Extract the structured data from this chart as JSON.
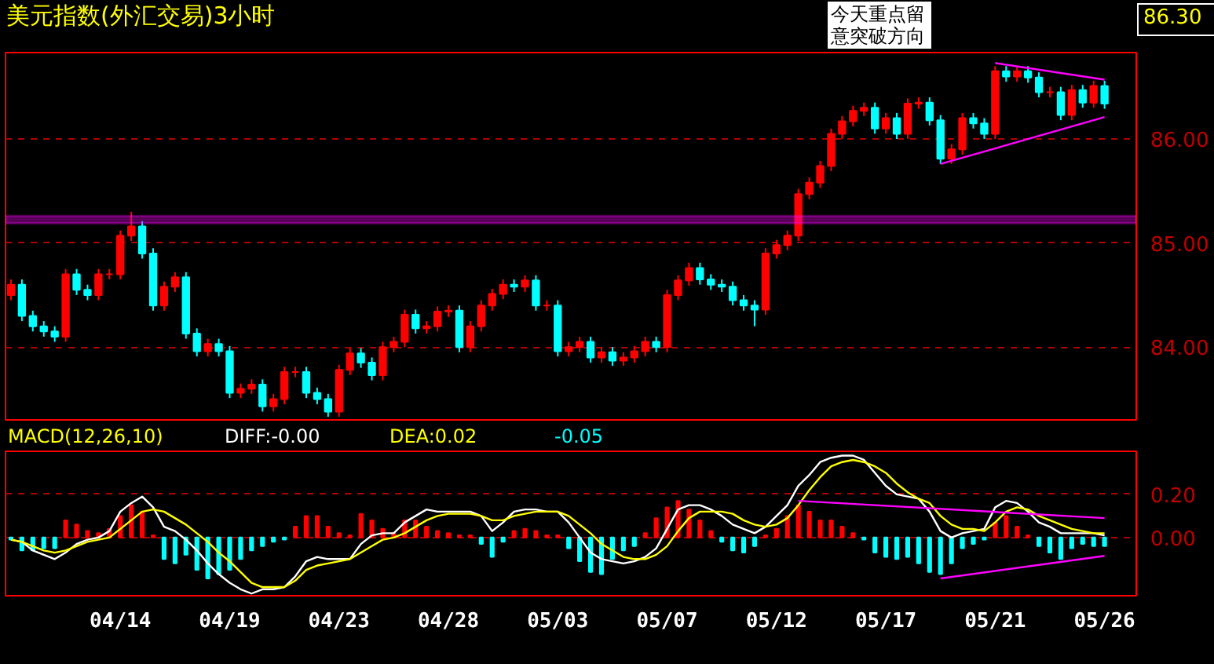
{
  "chart_data": [
    {
      "type": "candlestick",
      "title": "美元指数(外汇交易)3小时",
      "categories": [
        null,
        null,
        null,
        null,
        null,
        null,
        null,
        null,
        null,
        null,
        null,
        null,
        null,
        null,
        null,
        null,
        null,
        null,
        null,
        null,
        null,
        null,
        null,
        null,
        null,
        null,
        null,
        null,
        null,
        null,
        null,
        null,
        null,
        null,
        null,
        null,
        null,
        null,
        null,
        null,
        null,
        null,
        null,
        null,
        null,
        null,
        null,
        null,
        null,
        null,
        null,
        null,
        null,
        null,
        null,
        null,
        null,
        null,
        null,
        null,
        null,
        null,
        null,
        null,
        null,
        null,
        null,
        null,
        null,
        null,
        null,
        null,
        null,
        null,
        null,
        null,
        null,
        null,
        null,
        null,
        null,
        null,
        null,
        null,
        null,
        null,
        null,
        null,
        null,
        null,
        null,
        null,
        null,
        null,
        null,
        null,
        null,
        null,
        null,
        null,
        null
      ],
      "ohlc": [
        [
          84.5,
          84.65,
          84.45,
          84.6
        ],
        [
          84.6,
          84.65,
          84.25,
          84.3
        ],
        [
          84.3,
          84.35,
          84.15,
          84.2
        ],
        [
          84.2,
          84.25,
          84.1,
          84.15
        ],
        [
          84.15,
          84.2,
          84.05,
          84.1
        ],
        [
          84.1,
          84.75,
          84.05,
          84.7
        ],
        [
          84.7,
          84.75,
          84.5,
          84.55
        ],
        [
          84.55,
          84.6,
          84.45,
          84.5
        ],
        [
          84.5,
          84.75,
          84.45,
          84.7
        ],
        [
          84.7,
          84.75,
          84.65,
          84.7
        ],
        [
          84.7,
          85.12,
          84.65,
          85.07
        ],
        [
          85.07,
          85.3,
          85.02,
          85.16
        ],
        [
          85.16,
          85.21,
          84.85,
          84.9
        ],
        [
          84.9,
          84.95,
          84.35,
          84.4
        ],
        [
          84.4,
          84.63,
          84.35,
          84.58
        ],
        [
          84.58,
          84.72,
          84.53,
          84.67
        ],
        [
          84.67,
          84.72,
          84.08,
          84.13
        ],
        [
          84.13,
          84.18,
          83.91,
          83.96
        ],
        [
          83.96,
          84.08,
          83.91,
          84.03
        ],
        [
          84.03,
          84.08,
          83.91,
          83.96
        ],
        [
          83.96,
          84.01,
          83.51,
          83.56
        ],
        [
          83.56,
          83.65,
          83.51,
          83.6
        ],
        [
          83.6,
          83.69,
          83.55,
          83.64
        ],
        [
          83.64,
          83.69,
          83.38,
          83.43
        ],
        [
          83.43,
          83.55,
          83.38,
          83.5
        ],
        [
          83.5,
          83.81,
          83.45,
          83.76
        ],
        [
          83.76,
          83.81,
          83.71,
          83.76
        ],
        [
          83.76,
          83.81,
          83.51,
          83.56
        ],
        [
          83.56,
          83.61,
          83.45,
          83.5
        ],
        [
          83.5,
          83.55,
          83.33,
          83.38
        ],
        [
          83.38,
          83.83,
          83.33,
          83.78
        ],
        [
          83.78,
          83.99,
          83.73,
          83.94
        ],
        [
          83.94,
          83.99,
          83.8,
          83.85
        ],
        [
          83.85,
          83.9,
          83.68,
          83.73
        ],
        [
          83.73,
          84.05,
          83.68,
          84.0
        ],
        [
          84.0,
          84.1,
          83.95,
          84.05
        ],
        [
          84.05,
          84.36,
          84.0,
          84.31
        ],
        [
          84.31,
          84.36,
          84.13,
          84.18
        ],
        [
          84.18,
          84.25,
          84.13,
          84.2
        ],
        [
          84.2,
          84.39,
          84.15,
          84.34
        ],
        [
          84.34,
          84.4,
          84.29,
          84.35
        ],
        [
          84.35,
          84.4,
          83.95,
          84.0
        ],
        [
          84.0,
          84.25,
          83.95,
          84.2
        ],
        [
          84.2,
          84.45,
          84.15,
          84.4
        ],
        [
          84.4,
          84.56,
          84.35,
          84.51
        ],
        [
          84.51,
          84.65,
          84.46,
          84.6
        ],
        [
          84.6,
          84.65,
          84.53,
          84.58
        ],
        [
          84.58,
          84.69,
          84.53,
          84.64
        ],
        [
          84.64,
          84.69,
          84.35,
          84.4
        ],
        [
          84.4,
          84.45,
          84.35,
          84.4
        ],
        [
          84.4,
          84.45,
          83.91,
          83.96
        ],
        [
          83.96,
          84.05,
          83.91,
          84.0
        ],
        [
          84.0,
          84.1,
          83.95,
          84.05
        ],
        [
          84.05,
          84.1,
          83.85,
          83.9
        ],
        [
          83.9,
          84.0,
          83.85,
          83.95
        ],
        [
          83.95,
          84.0,
          83.82,
          83.87
        ],
        [
          83.87,
          83.95,
          83.82,
          83.9
        ],
        [
          83.9,
          84.01,
          83.85,
          83.96
        ],
        [
          83.96,
          84.1,
          83.91,
          84.05
        ],
        [
          84.05,
          84.1,
          83.95,
          84.0
        ],
        [
          84.0,
          84.55,
          83.95,
          84.5
        ],
        [
          84.5,
          84.69,
          84.45,
          84.64
        ],
        [
          84.64,
          84.81,
          84.59,
          84.76
        ],
        [
          84.76,
          84.81,
          84.6,
          84.65
        ],
        [
          84.65,
          84.7,
          84.55,
          84.6
        ],
        [
          84.6,
          84.65,
          84.53,
          84.58
        ],
        [
          84.58,
          84.63,
          84.4,
          84.45
        ],
        [
          84.45,
          84.5,
          84.35,
          84.4
        ],
        [
          84.4,
          84.45,
          84.2,
          84.36
        ],
        [
          84.36,
          84.95,
          84.31,
          84.9
        ],
        [
          84.9,
          85.03,
          84.85,
          84.98
        ],
        [
          84.98,
          85.12,
          84.93,
          85.07
        ],
        [
          85.07,
          85.52,
          85.02,
          85.47
        ],
        [
          85.47,
          85.63,
          85.42,
          85.58
        ],
        [
          85.58,
          85.79,
          85.53,
          85.74
        ],
        [
          85.74,
          86.1,
          85.69,
          86.05
        ],
        [
          86.05,
          86.22,
          86.0,
          86.17
        ],
        [
          86.17,
          86.32,
          86.12,
          86.27
        ],
        [
          86.27,
          86.35,
          86.22,
          86.3
        ],
        [
          86.3,
          86.35,
          86.05,
          86.1
        ],
        [
          86.1,
          86.25,
          86.05,
          86.2
        ],
        [
          86.2,
          86.25,
          86.0,
          86.05
        ],
        [
          86.05,
          86.39,
          86.0,
          86.34
        ],
        [
          86.34,
          86.4,
          86.29,
          86.35
        ],
        [
          86.35,
          86.4,
          86.13,
          86.18
        ],
        [
          86.18,
          86.23,
          85.76,
          85.81
        ],
        [
          85.81,
          85.95,
          85.76,
          85.9
        ],
        [
          85.9,
          86.25,
          85.85,
          86.2
        ],
        [
          86.2,
          86.25,
          86.1,
          86.15
        ],
        [
          86.15,
          86.2,
          86.0,
          86.05
        ],
        [
          86.05,
          86.7,
          86.0,
          86.65
        ],
        [
          86.65,
          86.7,
          86.55,
          86.6
        ],
        [
          86.6,
          86.7,
          86.55,
          86.65
        ],
        [
          86.65,
          86.7,
          86.54,
          86.59
        ],
        [
          86.59,
          86.64,
          86.4,
          86.45
        ],
        [
          86.45,
          86.5,
          86.4,
          86.45
        ],
        [
          86.45,
          86.5,
          86.18,
          86.23
        ],
        [
          86.23,
          86.52,
          86.18,
          86.47
        ],
        [
          86.47,
          86.52,
          86.3,
          86.35
        ],
        [
          86.35,
          86.56,
          86.3,
          86.51
        ],
        [
          86.51,
          86.56,
          86.29,
          86.34
        ]
      ],
      "series": [
        {
          "type": "line",
          "color": "#ff00ff",
          "values": [
            null,
            null,
            null,
            null,
            null,
            null,
            null,
            null,
            null,
            null,
            null,
            null,
            null,
            null,
            null,
            null,
            null,
            null,
            null,
            null,
            null,
            null,
            null,
            null,
            null,
            null,
            null,
            null,
            null,
            null,
            null,
            null,
            null,
            null,
            null,
            null,
            null,
            null,
            null,
            null,
            null,
            null,
            null,
            null,
            null,
            null,
            null,
            null,
            null,
            null,
            null,
            null,
            null,
            null,
            null,
            null,
            null,
            null,
            null,
            null,
            null,
            null,
            null,
            null,
            null,
            null,
            null,
            null,
            null,
            null,
            null,
            null,
            null,
            null,
            null,
            null,
            null,
            null,
            null,
            null,
            null,
            null,
            null,
            null,
            null,
            null,
            null,
            null,
            null,
            null,
            86.73,
            null,
            null,
            null,
            null,
            null,
            null,
            null,
            null,
            null,
            86.57
          ]
        },
        {
          "type": "line",
          "color": "#ff00ff",
          "values": [
            null,
            null,
            null,
            null,
            null,
            null,
            null,
            null,
            null,
            null,
            null,
            null,
            null,
            null,
            null,
            null,
            null,
            null,
            null,
            null,
            null,
            null,
            null,
            null,
            null,
            null,
            null,
            null,
            null,
            null,
            null,
            null,
            null,
            null,
            null,
            null,
            null,
            null,
            null,
            null,
            null,
            null,
            null,
            null,
            null,
            null,
            null,
            null,
            null,
            null,
            null,
            null,
            null,
            null,
            null,
            null,
            null,
            null,
            null,
            null,
            null,
            null,
            null,
            null,
            null,
            null,
            null,
            null,
            null,
            null,
            null,
            null,
            null,
            null,
            null,
            null,
            null,
            null,
            null,
            null,
            null,
            null,
            null,
            null,
            null,
            85.76,
            null,
            null,
            null,
            null,
            null,
            null,
            null,
            null,
            null,
            null,
            null,
            null,
            null,
            null,
            86.21
          ]
        }
      ],
      "bands": [
        {
          "axis": "y",
          "from": 85.19,
          "to": 85.26,
          "color": "#ff00ff"
        }
      ],
      "annotations": [
        "今天重点留意突破方向",
        "86.30"
      ],
      "ylim": [
        83.3,
        86.83
      ],
      "yticks": [
        {
          "value": 84,
          "label": "84.00"
        },
        {
          "value": 85,
          "label": "85.00"
        },
        {
          "value": 86,
          "label": "86.00"
        }
      ],
      "tick_labels": "y",
      "grid": "y"
    },
    {
      "type": "bar",
      "categories": [
        null,
        null,
        null,
        null,
        null,
        null,
        null,
        null,
        null,
        null,
        "04/14",
        null,
        null,
        null,
        null,
        null,
        null,
        null,
        null,
        null,
        "04/19",
        null,
        null,
        null,
        null,
        null,
        null,
        null,
        null,
        null,
        "04/23",
        null,
        null,
        null,
        null,
        null,
        null,
        null,
        null,
        null,
        "04/28",
        null,
        null,
        null,
        null,
        null,
        null,
        null,
        null,
        null,
        "05/03",
        null,
        null,
        null,
        null,
        null,
        null,
        null,
        null,
        null,
        "05/07",
        null,
        null,
        null,
        null,
        null,
        null,
        null,
        null,
        null,
        "05/12",
        null,
        null,
        null,
        null,
        null,
        null,
        null,
        null,
        null,
        "05/17",
        null,
        null,
        null,
        null,
        null,
        null,
        null,
        null,
        null,
        "05/21",
        null,
        null,
        null,
        null,
        null,
        null,
        null,
        null,
        null,
        "05/26"
      ],
      "series": [
        {
          "type": "bar",
          "colors": [
            "#00ffff",
            "#00ffff",
            "#00ffff",
            "#00ffff",
            "#00ffff",
            "#ff0000",
            "#ff0000",
            "#ff0000",
            "#ff0000",
            "#ff0000",
            "#ff0000",
            "#ff0000",
            "#ff0000",
            "#ff0000",
            "#00ffff",
            "#00ffff",
            "#00ffff",
            "#00ffff",
            "#00ffff",
            "#00ffff",
            "#00ffff",
            "#00ffff",
            "#00ffff",
            "#00ffff",
            "#00ffff",
            "#00ffff",
            "#ff0000",
            "#ff0000",
            "#ff0000",
            "#ff0000",
            "#ff0000",
            "#ff0000",
            "#ff0000",
            "#ff0000",
            "#ff0000",
            "#ff0000",
            "#ff0000",
            "#ff0000",
            "#ff0000",
            "#ff0000",
            "#ff0000",
            "#ff0000",
            "#ff0000",
            "#00ffff",
            "#00ffff",
            "#00ffff",
            "#ff0000",
            "#ff0000",
            "#ff0000",
            "#ff0000",
            "#ff0000",
            "#00ffff",
            "#00ffff",
            "#00ffff",
            "#00ffff",
            "#00ffff",
            "#00ffff",
            "#00ffff",
            "#ff0000",
            "#ff0000",
            "#ff0000",
            "#ff0000",
            "#ff0000",
            "#ff0000",
            "#ff0000",
            "#00ffff",
            "#00ffff",
            "#00ffff",
            "#00ffff",
            "#ff0000",
            "#ff0000",
            "#ff0000",
            "#ff0000",
            "#ff0000",
            "#ff0000",
            "#ff0000",
            "#ff0000",
            "#ff0000",
            "#00ffff",
            "#00ffff",
            "#00ffff",
            "#00ffff",
            "#00ffff",
            "#00ffff",
            "#00ffff",
            "#00ffff",
            "#00ffff",
            "#00ffff",
            "#00ffff",
            "#00ffff",
            "#ff0000",
            "#ff0000",
            "#ff0000",
            "#ff0000",
            "#00ffff",
            "#00ffff",
            "#00ffff",
            "#00ffff",
            "#00ffff",
            "#00ffff",
            "#00ffff"
          ],
          "values": [
            -0.01,
            -0.06,
            -0.06,
            -0.05,
            -0.05,
            0.08,
            0.06,
            0.03,
            0.02,
            0.04,
            0.1,
            0.15,
            0.12,
            0.01,
            -0.1,
            -0.12,
            -0.08,
            -0.15,
            -0.19,
            -0.17,
            -0.15,
            -0.1,
            -0.06,
            -0.04,
            -0.02,
            -0.01,
            0.05,
            0.1,
            0.1,
            0.05,
            0.02,
            0.01,
            0.11,
            0.08,
            0.04,
            0.02,
            0.08,
            0.08,
            0.05,
            0.03,
            0.02,
            0.01,
            0.01,
            -0.03,
            -0.09,
            -0.02,
            0.03,
            0.04,
            0.03,
            0.01,
            0.01,
            -0.05,
            -0.11,
            -0.16,
            -0.17,
            -0.1,
            -0.06,
            -0.04,
            0.02,
            0.09,
            0.14,
            0.17,
            0.13,
            0.08,
            0.03,
            -0.02,
            -0.06,
            -0.07,
            -0.04,
            0.01,
            0.04,
            0.1,
            0.15,
            0.12,
            0.08,
            0.08,
            0.05,
            0.02,
            -0.01,
            -0.07,
            -0.09,
            -0.1,
            -0.09,
            -0.12,
            -0.16,
            -0.17,
            -0.12,
            -0.05,
            -0.03,
            -0.01,
            0.07,
            0.1,
            0.05,
            0.01,
            -0.04,
            -0.07,
            -0.1,
            -0.05,
            -0.03,
            -0.04,
            -0.04
          ]
        },
        {
          "type": "line",
          "color": "#ffffff",
          "values": [
            -0.01,
            -0.02,
            -0.06,
            -0.08,
            -0.1,
            -0.07,
            -0.03,
            -0.01,
            0.0,
            0.03,
            0.12,
            0.16,
            0.19,
            0.14,
            0.05,
            0.03,
            -0.01,
            -0.06,
            -0.12,
            -0.17,
            -0.21,
            -0.24,
            -0.26,
            -0.24,
            -0.24,
            -0.23,
            -0.18,
            -0.11,
            -0.09,
            -0.1,
            -0.1,
            -0.1,
            -0.03,
            0.01,
            0.02,
            0.02,
            0.07,
            0.1,
            0.13,
            0.12,
            0.12,
            0.12,
            0.12,
            0.1,
            0.03,
            0.07,
            0.12,
            0.13,
            0.13,
            0.12,
            0.12,
            0.07,
            0.0,
            -0.07,
            -0.1,
            -0.11,
            -0.12,
            -0.11,
            -0.09,
            -0.05,
            0.04,
            0.13,
            0.15,
            0.15,
            0.13,
            0.1,
            0.06,
            0.04,
            0.02,
            0.05,
            0.1,
            0.15,
            0.24,
            0.29,
            0.35,
            0.37,
            0.38,
            0.38,
            0.36,
            0.3,
            0.24,
            0.2,
            0.19,
            0.18,
            0.12,
            0.03,
            0.0,
            0.02,
            0.03,
            0.04,
            0.14,
            0.17,
            0.16,
            0.12,
            0.07,
            0.05,
            0.02,
            0.02,
            0.02,
            0.02,
            0.01
          ]
        },
        {
          "type": "line",
          "color": "#ffff00",
          "values": [
            -0.01,
            -0.02,
            -0.04,
            -0.06,
            -0.07,
            -0.06,
            -0.04,
            -0.02,
            -0.01,
            0.0,
            0.04,
            0.08,
            0.12,
            0.13,
            0.12,
            0.09,
            0.06,
            0.02,
            -0.02,
            -0.07,
            -0.11,
            -0.16,
            -0.21,
            -0.23,
            -0.23,
            -0.23,
            -0.2,
            -0.15,
            -0.13,
            -0.12,
            -0.11,
            -0.1,
            -0.07,
            -0.04,
            -0.01,
            0.0,
            0.02,
            0.05,
            0.08,
            0.1,
            0.11,
            0.11,
            0.11,
            0.1,
            0.08,
            0.08,
            0.1,
            0.11,
            0.12,
            0.12,
            0.12,
            0.1,
            0.06,
            0.02,
            -0.03,
            -0.06,
            -0.09,
            -0.1,
            -0.1,
            -0.08,
            -0.04,
            0.03,
            0.09,
            0.12,
            0.12,
            0.12,
            0.11,
            0.08,
            0.06,
            0.05,
            0.06,
            0.09,
            0.15,
            0.22,
            0.28,
            0.33,
            0.35,
            0.36,
            0.35,
            0.33,
            0.3,
            0.25,
            0.21,
            0.18,
            0.16,
            0.1,
            0.06,
            0.04,
            0.04,
            0.03,
            0.07,
            0.12,
            0.14,
            0.13,
            0.1,
            0.08,
            0.06,
            0.04,
            0.03,
            0.02,
            0.02
          ]
        },
        {
          "type": "line",
          "color": "#ff00ff",
          "values": [
            null,
            null,
            null,
            null,
            null,
            null,
            null,
            null,
            null,
            null,
            null,
            null,
            null,
            null,
            null,
            null,
            null,
            null,
            null,
            null,
            null,
            null,
            null,
            null,
            null,
            null,
            null,
            null,
            null,
            null,
            null,
            null,
            null,
            null,
            null,
            null,
            null,
            null,
            null,
            null,
            null,
            null,
            null,
            null,
            null,
            null,
            null,
            null,
            null,
            null,
            null,
            null,
            null,
            null,
            null,
            null,
            null,
            null,
            null,
            null,
            null,
            null,
            null,
            null,
            null,
            null,
            null,
            null,
            null,
            null,
            null,
            null,
            0.17,
            null,
            null,
            null,
            null,
            null,
            null,
            null,
            null,
            null,
            null,
            null,
            null,
            null,
            null,
            null,
            null,
            null,
            null,
            null,
            null,
            null,
            null,
            null,
            null,
            null,
            null,
            null,
            0.09
          ]
        },
        {
          "type": "line",
          "color": "#ff00ff",
          "values": [
            null,
            null,
            null,
            null,
            null,
            null,
            null,
            null,
            null,
            null,
            null,
            null,
            null,
            null,
            null,
            null,
            null,
            null,
            null,
            null,
            null,
            null,
            null,
            null,
            null,
            null,
            null,
            null,
            null,
            null,
            null,
            null,
            null,
            null,
            null,
            null,
            null,
            null,
            null,
            null,
            null,
            null,
            null,
            null,
            null,
            null,
            null,
            null,
            null,
            null,
            null,
            null,
            null,
            null,
            null,
            null,
            null,
            null,
            null,
            null,
            null,
            null,
            null,
            null,
            null,
            null,
            null,
            null,
            null,
            null,
            null,
            null,
            null,
            null,
            null,
            null,
            null,
            null,
            null,
            null,
            null,
            null,
            null,
            null,
            null,
            -0.19,
            null,
            null,
            null,
            null,
            null,
            null,
            null,
            null,
            null,
            null,
            null,
            null,
            null,
            null,
            -0.085
          ]
        }
      ],
      "annotations": [
        "MACD(12,26,10)",
        "DIFF:-0.00",
        "DEA:0.02",
        "-0.05"
      ],
      "ylim": [
        -0.27,
        0.4
      ],
      "yticks": [
        {
          "value": 0.2,
          "label": "0.20"
        },
        {
          "value": 0,
          "label": "0.00"
        }
      ],
      "grid": "y"
    }
  ]
}
